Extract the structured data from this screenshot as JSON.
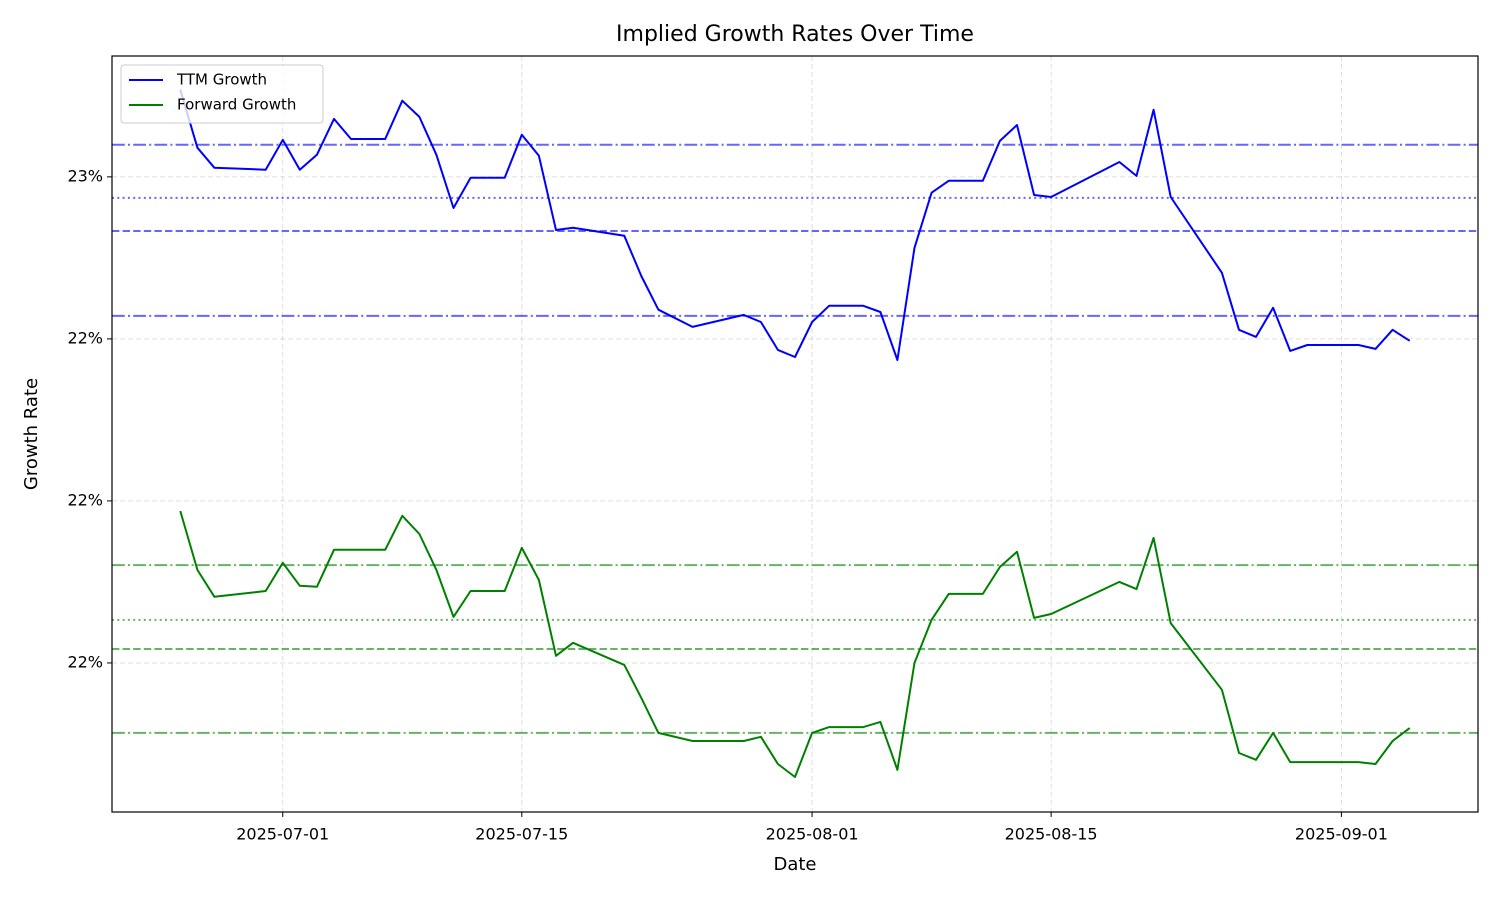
{
  "chart_data": {
    "type": "line",
    "title": "Implied Growth Rates Over Time",
    "xlabel": "Date",
    "ylabel": "Growth Rate",
    "x": [
      "2025-06-25",
      "2025-06-26",
      "2025-06-27",
      "2025-06-30",
      "2025-07-01",
      "2025-07-02",
      "2025-07-03",
      "2025-07-04",
      "2025-07-05",
      "2025-07-07",
      "2025-07-08",
      "2025-07-09",
      "2025-07-10",
      "2025-07-11",
      "2025-07-12",
      "2025-07-14",
      "2025-07-15",
      "2025-07-16",
      "2025-07-17",
      "2025-07-18",
      "2025-07-21",
      "2025-07-22",
      "2025-07-23",
      "2025-07-25",
      "2025-07-28",
      "2025-07-29",
      "2025-07-30",
      "2025-07-31",
      "2025-08-01",
      "2025-08-02",
      "2025-08-04",
      "2025-08-05",
      "2025-08-06",
      "2025-08-07",
      "2025-08-08",
      "2025-08-09",
      "2025-08-11",
      "2025-08-12",
      "2025-08-13",
      "2025-08-14",
      "2025-08-15",
      "2025-08-19",
      "2025-08-20",
      "2025-08-21",
      "2025-08-22",
      "2025-08-25",
      "2025-08-26",
      "2025-08-27",
      "2025-08-28",
      "2025-08-29",
      "2025-08-30",
      "2025-09-02",
      "2025-09-03",
      "2025-09-04",
      "2025-09-05"
    ],
    "series": [
      {
        "name": "TTM Growth",
        "color": "#0000ff",
        "values": [
          23.269,
          23.09,
          23.028,
          23.022,
          23.114,
          23.022,
          23.068,
          23.179,
          23.117,
          23.117,
          23.235,
          23.185,
          23.068,
          22.904,
          22.997,
          22.997,
          23.13,
          23.065,
          22.836,
          22.843,
          22.818,
          22.694,
          22.59,
          22.537,
          22.574,
          22.552,
          22.466,
          22.444,
          22.552,
          22.602,
          22.602,
          22.583,
          22.435,
          22.781,
          22.951,
          22.988,
          22.988,
          23.111,
          23.16,
          22.944,
          22.938,
          23.046,
          23.003,
          23.207,
          22.938,
          22.704,
          22.528,
          22.506,
          22.596,
          22.463,
          22.481,
          22.481,
          22.469,
          22.528,
          22.494
        ]
      },
      {
        "name": "Forward Growth",
        "color": "#008000",
        "values": [
          21.969,
          21.787,
          21.704,
          21.722,
          21.809,
          21.738,
          21.735,
          21.849,
          21.849,
          21.849,
          21.954,
          21.898,
          21.787,
          21.642,
          21.722,
          21.722,
          21.855,
          21.756,
          21.522,
          21.562,
          21.494,
          21.392,
          21.284,
          21.259,
          21.259,
          21.272,
          21.188,
          21.148,
          21.284,
          21.302,
          21.302,
          21.318,
          21.17,
          21.5,
          21.633,
          21.713,
          21.713,
          21.796,
          21.843,
          21.639,
          21.651,
          21.75,
          21.728,
          21.886,
          21.623,
          21.417,
          21.222,
          21.201,
          21.284,
          21.194,
          21.194,
          21.194,
          21.188,
          21.259,
          21.299
        ]
      }
    ],
    "hlines": [
      {
        "value": 23.099,
        "color": "#0000ff",
        "style": "dashdot"
      },
      {
        "value": 22.935,
        "color": "#0000ff",
        "style": "dotted"
      },
      {
        "value": 22.833,
        "color": "#0000ff",
        "style": "dashed"
      },
      {
        "value": 22.571,
        "color": "#0000ff",
        "style": "dashdot"
      },
      {
        "value": 21.802,
        "color": "#008000",
        "style": "dashdot"
      },
      {
        "value": 21.633,
        "color": "#008000",
        "style": "dotted"
      },
      {
        "value": 21.543,
        "color": "#008000",
        "style": "dashed"
      },
      {
        "value": 21.284,
        "color": "#008000",
        "style": "dashdot"
      }
    ],
    "hline_alpha": 0.6,
    "xlim": [
      "2025-06-21",
      "2025-09-09"
    ],
    "xticks": [
      "2025-07-01",
      "2025-07-15",
      "2025-08-01",
      "2025-08-15",
      "2025-09-01"
    ],
    "ylim": [
      21.04,
      23.373
    ],
    "yticks": [
      {
        "value": 23,
        "label": "23%"
      },
      {
        "value": 22.5,
        "label": "22%"
      },
      {
        "value": 22,
        "label": "22%"
      },
      {
        "value": 21.5,
        "label": "22%"
      }
    ],
    "grid": true,
    "legend": "upper left"
  }
}
